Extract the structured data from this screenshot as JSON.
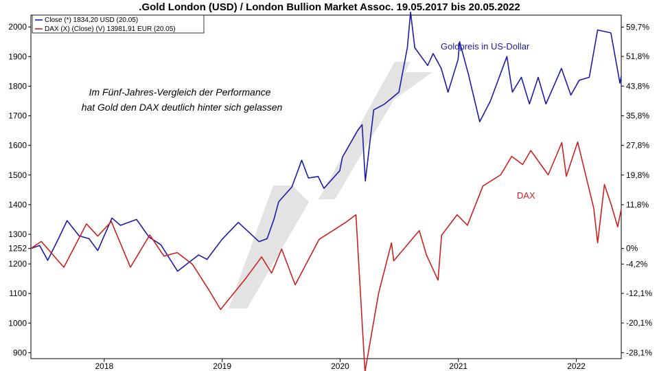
{
  "chart_data": {
    "type": "line",
    "title": ".Gold London (USD) / London Bullion Market Assoc. 19.05.2017 bis 20.05.2022",
    "xlabel": "",
    "ylabel": "",
    "x_ticks": [
      "2018",
      "2019",
      "2020",
      "2021",
      "2022"
    ],
    "xlim": [
      "2017-05-19",
      "2022-05-20"
    ],
    "ylim": [
      880,
      2040
    ],
    "y_ticks_left": [
      "900",
      "1000",
      "1100",
      "1200",
      "1252",
      "1300",
      "1400",
      "1500",
      "1600",
      "1700",
      "1800",
      "1900",
      "2000"
    ],
    "y_ticks_right": [
      "59,7%",
      "51,8%",
      "43,8%",
      "35,8%",
      "27,8%",
      "19,8%",
      "11,8%",
      "0%",
      "-4,2%",
      "-12,1%",
      "-20,1%",
      "-28,1%"
    ],
    "grid": false,
    "legend_position": "top-left",
    "legend": [
      {
        "label": "Close (*) 1834,20 USD (20.05)",
        "color": "#1a1aa6"
      },
      {
        "label": "DAX (X) (Close) (V) 13981,91 EUR (20.05)",
        "color": "#cc2020"
      }
    ],
    "annotations": {
      "note_line1": "Im Fünf-Jahres-Vergleich der Performance",
      "note_line2": "hat Gold den DAX deutlich hinter sich gelassen",
      "gold_label": "Goldpreis in US-Dollar",
      "dax_label": "DAX"
    },
    "series": [
      {
        "name": "Close (*) 1834,20 USD (20.05)",
        "color": "#1a1aa6",
        "x": [
          "2017-05-19",
          "2017-06-15",
          "2017-07-10",
          "2017-08-10",
          "2017-09-08",
          "2017-10-15",
          "2017-11-15",
          "2017-12-12",
          "2018-01-25",
          "2018-02-20",
          "2018-04-11",
          "2018-05-20",
          "2018-06-25",
          "2018-08-16",
          "2018-09-20",
          "2018-10-20",
          "2018-11-15",
          "2018-12-31",
          "2019-02-20",
          "2019-04-25",
          "2019-05-20",
          "2019-06-10",
          "2019-06-25",
          "2019-08-05",
          "2019-09-04",
          "2019-09-25",
          "2019-10-25",
          "2019-11-12",
          "2019-12-31",
          "2020-01-08",
          "2020-02-24",
          "2020-03-09",
          "2020-03-19",
          "2020-04-14",
          "2020-05-18",
          "2020-07-01",
          "2020-07-27",
          "2020-08-06",
          "2020-08-19",
          "2020-09-28",
          "2020-10-15",
          "2020-11-09",
          "2020-11-30",
          "2020-12-31",
          "2021-01-05",
          "2021-02-01",
          "2021-03-08",
          "2021-04-10",
          "2021-05-31",
          "2021-06-17",
          "2021-07-15",
          "2021-08-09",
          "2021-09-05",
          "2021-09-29",
          "2021-11-16",
          "2021-12-15",
          "2022-01-10",
          "2022-02-10",
          "2022-03-08",
          "2022-04-18",
          "2022-05-16",
          "2022-05-20"
        ],
        "y": [
          1252,
          1262,
          1212,
          1280,
          1346,
          1295,
          1285,
          1245,
          1355,
          1330,
          1350,
          1290,
          1265,
          1175,
          1205,
          1230,
          1215,
          1282,
          1340,
          1275,
          1285,
          1350,
          1410,
          1460,
          1550,
          1490,
          1495,
          1455,
          1515,
          1560,
          1650,
          1670,
          1480,
          1720,
          1740,
          1780,
          1930,
          2050,
          1930,
          1870,
          1910,
          1860,
          1780,
          1890,
          1950,
          1840,
          1680,
          1750,
          1900,
          1780,
          1830,
          1740,
          1830,
          1740,
          1860,
          1770,
          1820,
          1830,
          1990,
          1980,
          1810,
          1834
        ]
      },
      {
        "name": "DAX (X) (Close) (V) 13981,91 EUR (20.05)",
        "color": "#cc2020",
        "x": [
          "2017-05-19",
          "2017-06-20",
          "2017-08-29",
          "2017-11-07",
          "2017-12-12",
          "2018-01-23",
          "2018-03-23",
          "2018-05-22",
          "2018-07-05",
          "2018-08-15",
          "2018-10-01",
          "2018-11-20",
          "2018-12-27",
          "2019-03-15",
          "2019-05-03",
          "2019-06-03",
          "2019-07-04",
          "2019-08-15",
          "2019-10-28",
          "2020-01-17",
          "2020-02-19",
          "2020-03-18",
          "2020-04-29",
          "2020-06-08",
          "2020-06-15",
          "2020-09-02",
          "2020-09-24",
          "2020-10-30",
          "2020-11-10",
          "2020-12-28",
          "2021-01-29",
          "2021-03-18",
          "2021-05-12",
          "2021-06-15",
          "2021-07-19",
          "2021-08-13",
          "2021-10-06",
          "2021-11-17",
          "2021-12-01",
          "2022-01-05",
          "2022-02-24",
          "2022-03-08",
          "2022-03-29",
          "2022-04-19",
          "2022-05-09",
          "2022-05-20"
        ],
        "y": [
          12640,
          12880,
          12000,
          13480,
          13060,
          13560,
          12000,
          13100,
          12380,
          12500,
          12100,
          11240,
          10560,
          11620,
          12350,
          11800,
          12620,
          11400,
          12950,
          13520,
          13790,
          8440,
          11110,
          12830,
          12220,
          13250,
          12420,
          11560,
          13090,
          13790,
          13430,
          14770,
          15150,
          15780,
          15500,
          15980,
          15150,
          16250,
          15100,
          16270,
          14010,
          12830,
          14820,
          14130,
          13380,
          13982
        ]
      }
    ]
  }
}
